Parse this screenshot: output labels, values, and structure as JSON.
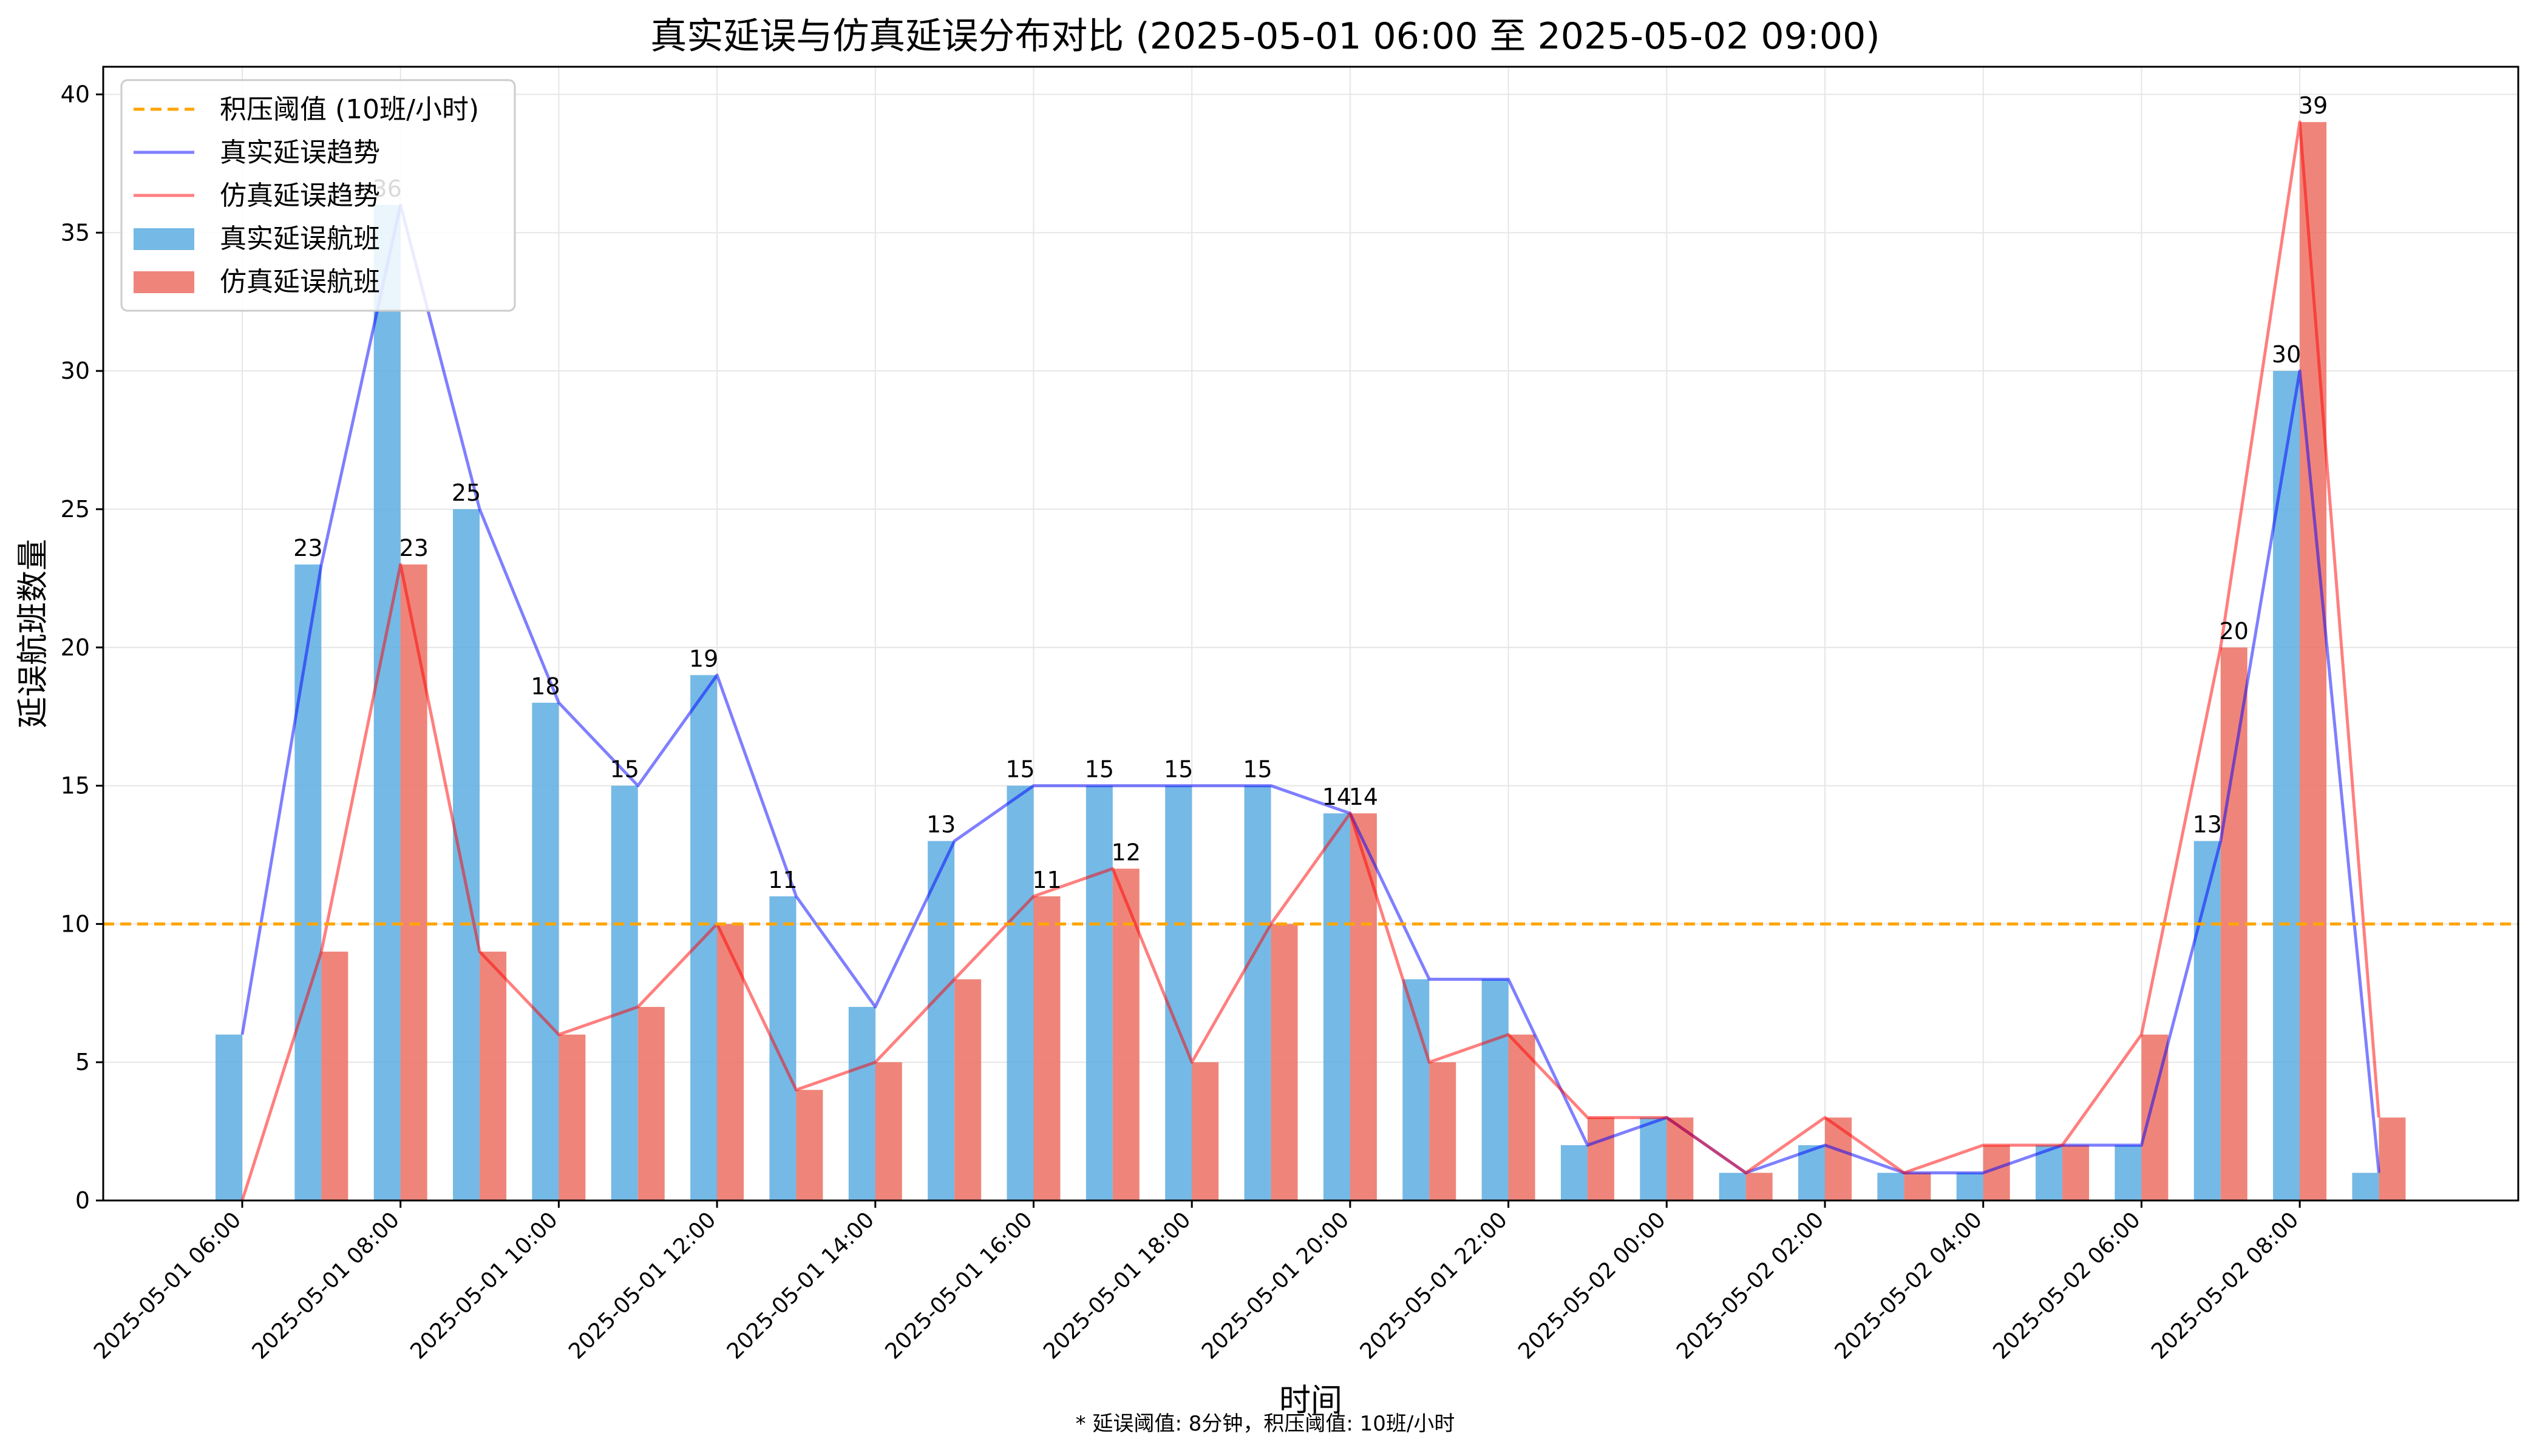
{
  "chart_data": {
    "type": "bar",
    "title": "真实延误与仿真延误分布对比 (2025-05-01 06:00 至 2025-05-02 09:00)",
    "xlabel": "时间",
    "ylabel": "延误航班数量",
    "footnote": "* 延误阈值: 8分钟，积压阈值: 10班/小时",
    "ylim": [
      0,
      41
    ],
    "yticks": [
      0,
      5,
      10,
      15,
      20,
      25,
      30,
      35,
      40
    ],
    "grid": true,
    "legend_position": "top-left",
    "x": [
      "2025-05-01 06:00",
      "2025-05-01 07:00",
      "2025-05-01 08:00",
      "2025-05-01 09:00",
      "2025-05-01 10:00",
      "2025-05-01 11:00",
      "2025-05-01 12:00",
      "2025-05-01 13:00",
      "2025-05-01 14:00",
      "2025-05-01 15:00",
      "2025-05-01 16:00",
      "2025-05-01 17:00",
      "2025-05-01 18:00",
      "2025-05-01 19:00",
      "2025-05-01 20:00",
      "2025-05-01 21:00",
      "2025-05-01 22:00",
      "2025-05-01 23:00",
      "2025-05-02 00:00",
      "2025-05-02 01:00",
      "2025-05-02 02:00",
      "2025-05-02 03:00",
      "2025-05-02 04:00",
      "2025-05-02 05:00",
      "2025-05-02 06:00",
      "2025-05-02 07:00",
      "2025-05-02 08:00",
      "2025-05-02 09:00"
    ],
    "xtick_labels": [
      "2025-05-01 06:00",
      "2025-05-01 08:00",
      "2025-05-01 10:00",
      "2025-05-01 12:00",
      "2025-05-01 14:00",
      "2025-05-01 16:00",
      "2025-05-01 18:00",
      "2025-05-01 20:00",
      "2025-05-01 22:00",
      "2025-05-02 00:00",
      "2025-05-02 02:00",
      "2025-05-02 04:00",
      "2025-05-02 06:00",
      "2025-05-02 08:00"
    ],
    "threshold": {
      "name": "积压阈值 (10班/小时)",
      "value": 10,
      "color": "#FFA500"
    },
    "label_min": 11,
    "series": [
      {
        "name": "真实延误航班",
        "kind": "bar",
        "color": "#5DADE2",
        "values": [
          6,
          23,
          36,
          25,
          18,
          15,
          19,
          11,
          7,
          13,
          15,
          15,
          15,
          15,
          14,
          8,
          8,
          2,
          3,
          1,
          2,
          1,
          1,
          2,
          2,
          13,
          30,
          1
        ]
      },
      {
        "name": "仿真延误航班",
        "kind": "bar",
        "color": "#EC7063",
        "values": [
          0,
          9,
          23,
          9,
          6,
          7,
          10,
          4,
          5,
          8,
          11,
          12,
          5,
          10,
          14,
          5,
          6,
          3,
          3,
          1,
          3,
          1,
          2,
          2,
          6,
          20,
          39,
          3
        ]
      }
    ],
    "trend_lines": [
      {
        "name": "真实延误趋势",
        "color": "#0000FF",
        "of_series": 0
      },
      {
        "name": "仿真延误趋势",
        "color": "#FF0000",
        "of_series": 1
      }
    ]
  }
}
